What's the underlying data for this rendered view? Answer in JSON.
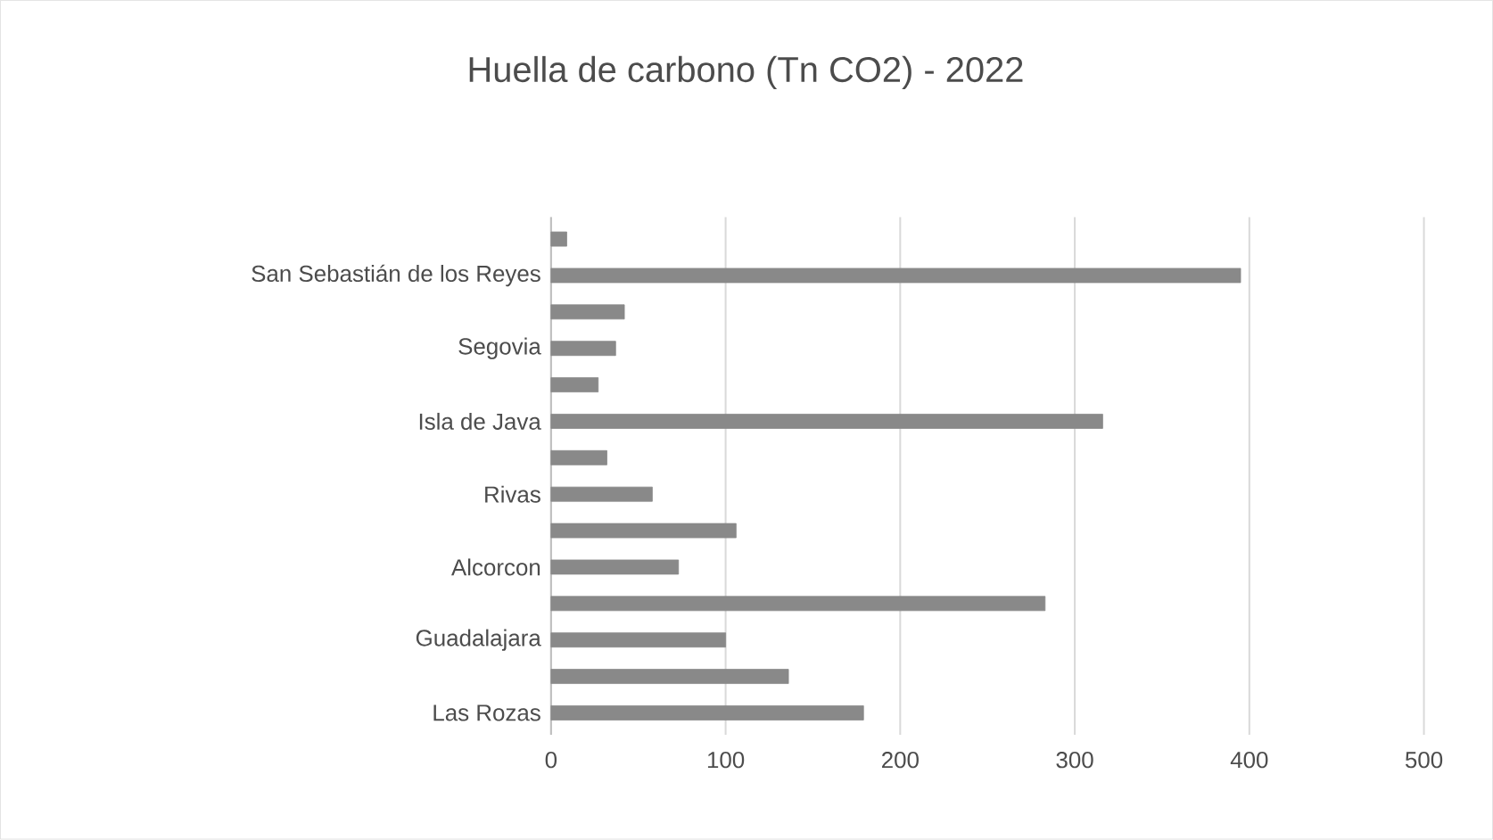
{
  "chart_data": {
    "type": "bar",
    "orientation": "horizontal",
    "title": "Huella de carbono (Tn CO2) - 2022",
    "categories": [
      null,
      "San Sebastián de los Reyes",
      null,
      "Segovia",
      null,
      "Isla de Java",
      null,
      "Rivas",
      null,
      "Alcorcon",
      null,
      "Guadalajara",
      null,
      "Las Rozas"
    ],
    "values": [
      9,
      395,
      42,
      37,
      27,
      316,
      32,
      58,
      106,
      73,
      283,
      100,
      136,
      179
    ],
    "color": "#898989",
    "xlim": [
      0,
      500
    ],
    "xticks": [
      0,
      100,
      200,
      300,
      400,
      500
    ],
    "grid": "x"
  }
}
